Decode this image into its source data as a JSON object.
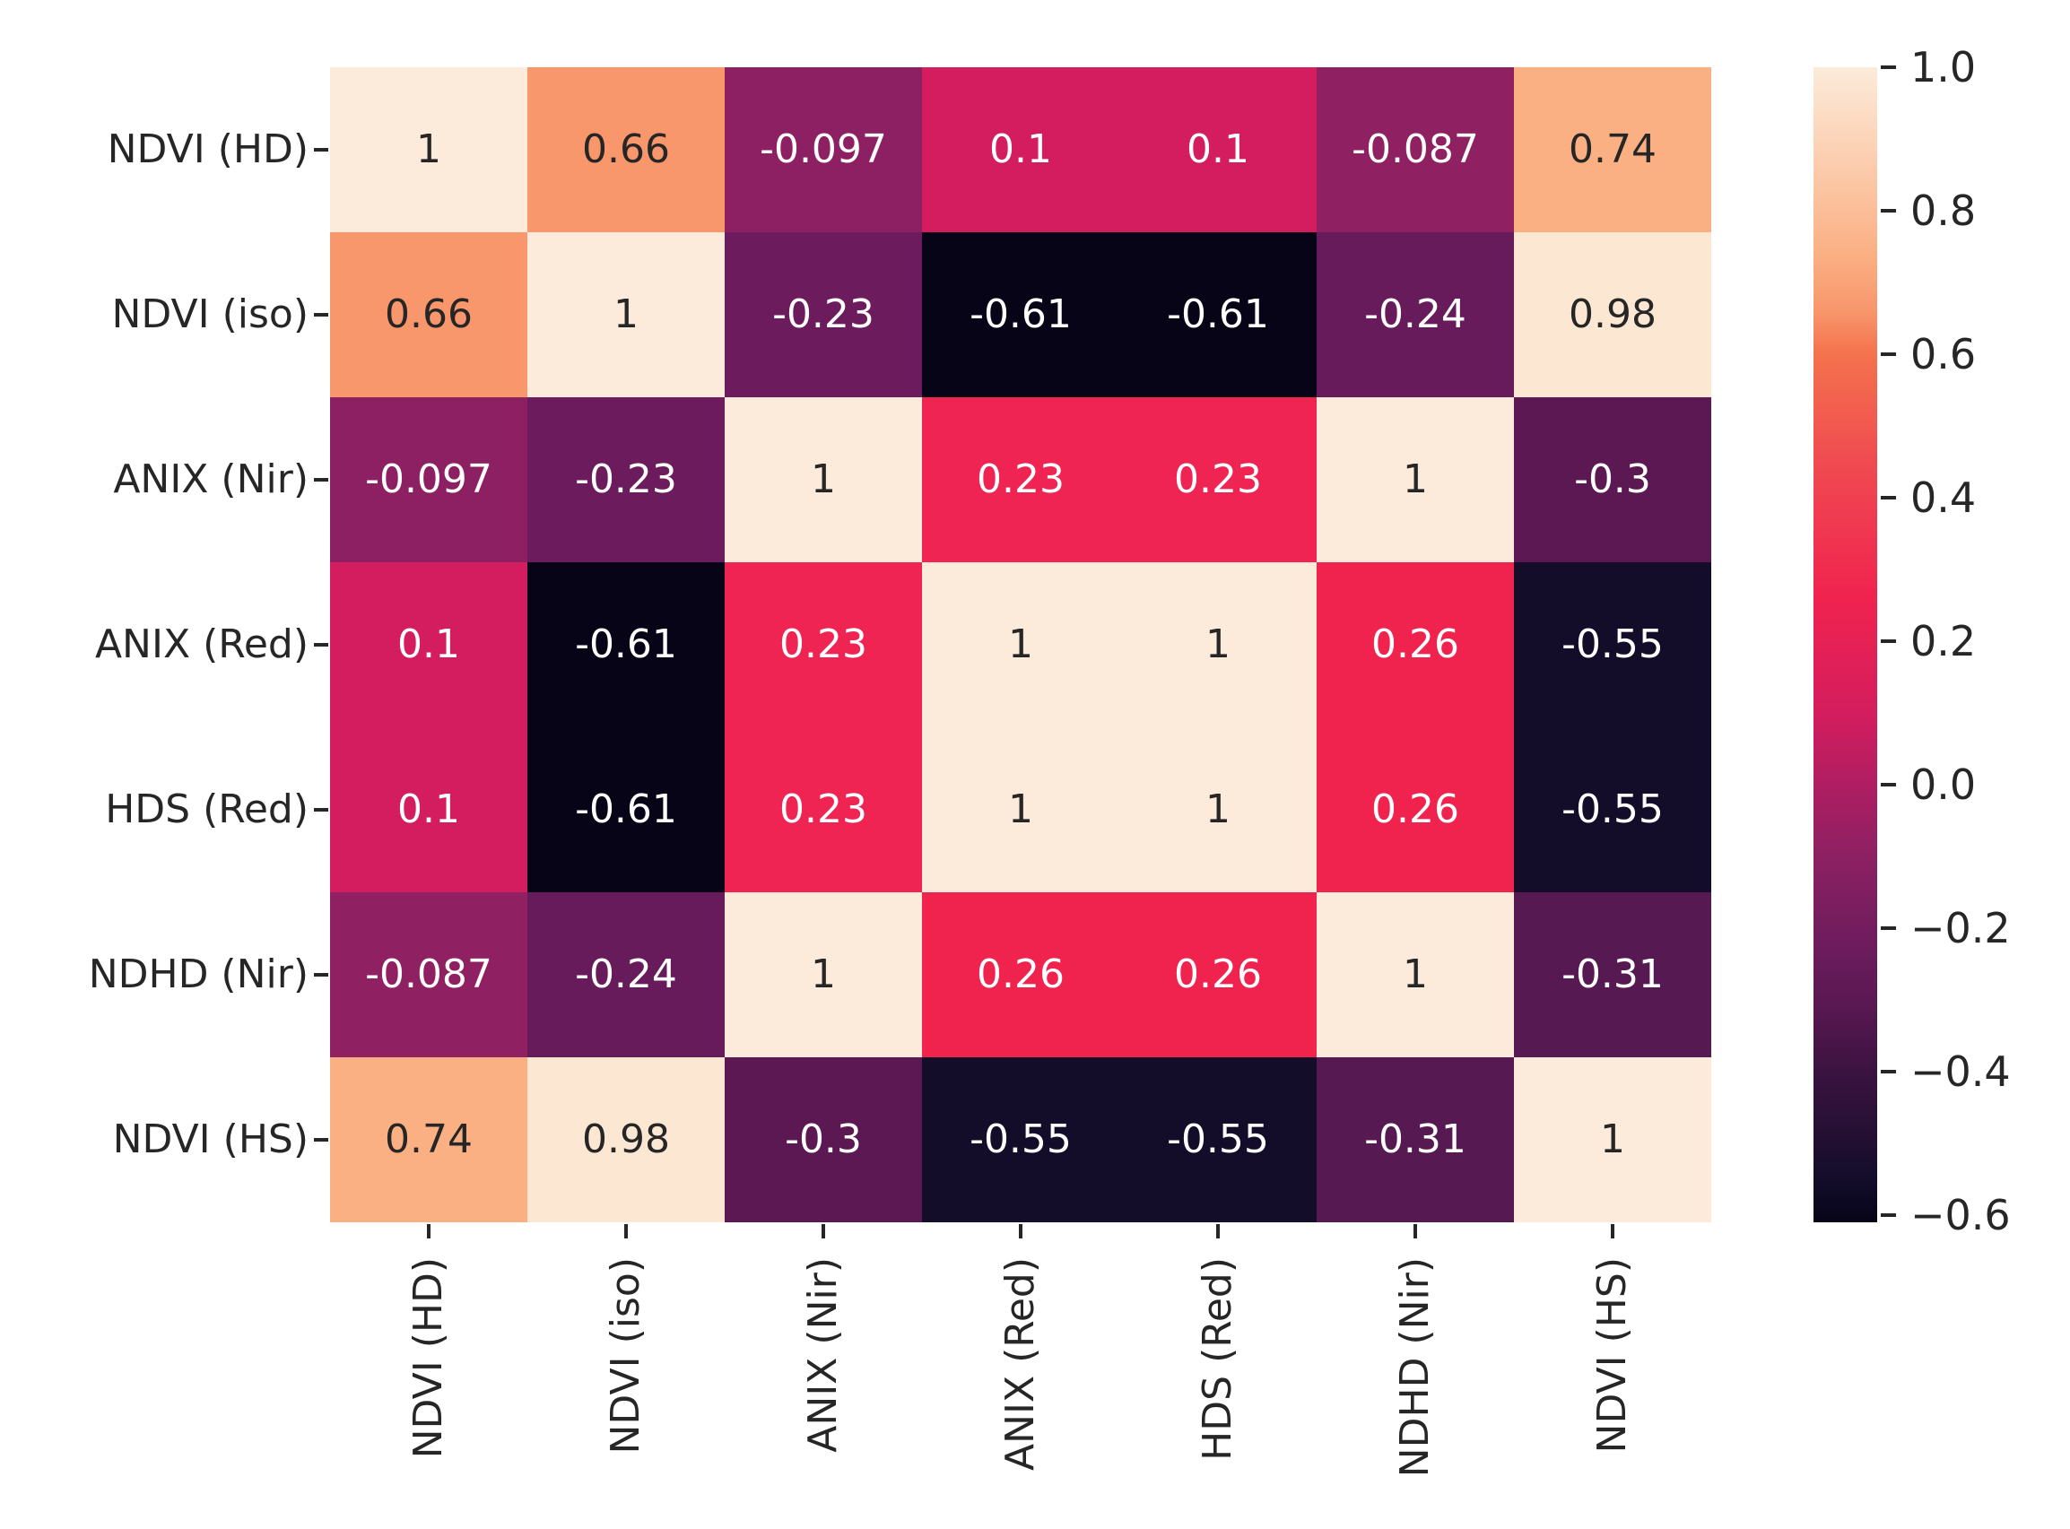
{
  "chart_data": {
    "type": "heatmap",
    "title": "",
    "xlabel": "",
    "ylabel": "",
    "grid": false,
    "legend_position": "right-colorbar",
    "x_categories": [
      "NDVI (HD)",
      "NDVI (iso)",
      "ANIX (Nir)",
      "ANIX (Red)",
      "HDS (Red)",
      "NDHD (Nir)",
      "NDVI (HS)"
    ],
    "y_categories": [
      "NDVI (HD)",
      "NDVI (iso)",
      "ANIX (Nir)",
      "ANIX (Red)",
      "HDS (Red)",
      "NDHD (Nir)",
      "NDVI (HS)"
    ],
    "matrix_display": [
      [
        "1",
        "0.66",
        "-0.097",
        "0.1",
        "0.1",
        "-0.087",
        "0.74"
      ],
      [
        "0.66",
        "1",
        "-0.23",
        "-0.61",
        "-0.61",
        "-0.24",
        "0.98"
      ],
      [
        "-0.097",
        "-0.23",
        "1",
        "0.23",
        "0.23",
        "1",
        "-0.3"
      ],
      [
        "0.1",
        "-0.61",
        "0.23",
        "1",
        "1",
        "0.26",
        "-0.55"
      ],
      [
        "0.1",
        "-0.61",
        "0.23",
        "1",
        "1",
        "0.26",
        "-0.55"
      ],
      [
        "-0.087",
        "-0.24",
        "1",
        "0.26",
        "0.26",
        "1",
        "-0.31"
      ],
      [
        "0.74",
        "0.98",
        "-0.3",
        "-0.55",
        "-0.55",
        "-0.31",
        "1"
      ]
    ],
    "matrix_values": [
      [
        1,
        0.66,
        -0.097,
        0.1,
        0.1,
        -0.087,
        0.74
      ],
      [
        0.66,
        1,
        -0.23,
        -0.61,
        -0.61,
        -0.24,
        0.98
      ],
      [
        -0.097,
        -0.23,
        1,
        0.23,
        0.23,
        1,
        -0.3
      ],
      [
        0.1,
        -0.61,
        0.23,
        1,
        1,
        0.26,
        -0.55
      ],
      [
        0.1,
        -0.61,
        0.23,
        1,
        1,
        0.26,
        -0.55
      ],
      [
        -0.087,
        -0.24,
        1,
        0.26,
        0.26,
        1,
        -0.31
      ],
      [
        0.74,
        0.98,
        -0.3,
        -0.55,
        -0.55,
        -0.31,
        1
      ]
    ],
    "color_map": {
      "1": "#fcebda",
      "0.98": "#fce7d3",
      "0.74": "#fbb084",
      "0.66": "#f8966c",
      "0.26": "#f0234f",
      "0.23": "#ef2452",
      "0.1": "#d41d5e",
      "-0.087": "#8f2061",
      "-0.097": "#8d2062",
      "-0.23": "#6c1c5d",
      "-0.24": "#671b5a",
      "-0.3": "#5c1853",
      "-0.31": "#571951",
      "-0.55": "#130d2a",
      "-0.61": "#070418"
    },
    "annotation_dark_color": "#262626",
    "annotation_light_color": "#ffffff",
    "annotation_luminance_threshold": 0.4,
    "colorbar": {
      "vmin": -0.61,
      "vmax": 1.0,
      "tick_labels": [
        "1.0",
        "0.8",
        "0.6",
        "0.4",
        "0.2",
        "0.0",
        "−0.2",
        "−0.4",
        "−0.6"
      ],
      "tick_values": [
        1.0,
        0.8,
        0.6,
        0.4,
        0.2,
        0.0,
        -0.2,
        -0.4,
        -0.6
      ],
      "gradient_stops": [
        {
          "pos": 0.0,
          "color": "#fcebda"
        },
        {
          "pos": 16.15,
          "color": "#fbb084"
        },
        {
          "pos": 21.12,
          "color": "#f8966c"
        },
        {
          "pos": 24.84,
          "color": "#f4724d"
        },
        {
          "pos": 34.16,
          "color": "#f04b50"
        },
        {
          "pos": 45.96,
          "color": "#f0234f"
        },
        {
          "pos": 55.9,
          "color": "#d41d5e"
        },
        {
          "pos": 62.11,
          "color": "#b01e62"
        },
        {
          "pos": 68.14,
          "color": "#8d2062"
        },
        {
          "pos": 76.4,
          "color": "#6c1c5d"
        },
        {
          "pos": 80.75,
          "color": "#5c1853"
        },
        {
          "pos": 86.96,
          "color": "#3b1340"
        },
        {
          "pos": 96.27,
          "color": "#130d2a"
        },
        {
          "pos": 100.0,
          "color": "#070418"
        }
      ]
    }
  }
}
